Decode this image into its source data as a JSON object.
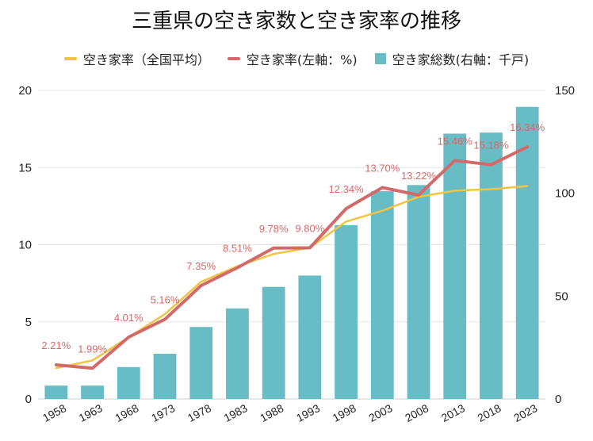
{
  "chart_data": {
    "type": "bar",
    "title": "三重県の空き家数と空き家率の推移",
    "categories": [
      "1958",
      "1963",
      "1968",
      "1973",
      "1978",
      "1983",
      "1988",
      "1993",
      "1998",
      "2003",
      "2008",
      "2013",
      "2018",
      "2023"
    ],
    "series": [
      {
        "name": "空き家率（全国平均）",
        "kind": "line",
        "axis": "left",
        "color": "#f2c440",
        "values": [
          2.0,
          2.5,
          4.0,
          5.5,
          7.6,
          8.6,
          9.4,
          9.8,
          11.5,
          12.2,
          13.1,
          13.5,
          13.6,
          13.8
        ]
      },
      {
        "name": "空き家率(左軸：%)",
        "kind": "line",
        "axis": "left",
        "color": "#d36a6a",
        "values": [
          2.21,
          1.99,
          4.01,
          5.16,
          7.35,
          8.51,
          9.78,
          9.8,
          12.34,
          13.7,
          13.22,
          15.46,
          15.18,
          16.34
        ],
        "data_labels": [
          "2.21%",
          "1.99%",
          "4.01%",
          "5.16%",
          "7.35%",
          "8.51%",
          "9.78%",
          "9.80%",
          "12.34%",
          "13.70%",
          "13.22%",
          "15.46%",
          "15.18%",
          "16.34%"
        ]
      },
      {
        "name": "空き家総数(右軸：千戸)",
        "kind": "bar",
        "axis": "right",
        "color": "#68bcc6",
        "values": [
          6.5,
          6.5,
          15.5,
          22,
          35,
          44,
          54.5,
          60,
          84.5,
          101,
          104,
          129,
          129.5,
          142
        ]
      }
    ],
    "y_left": {
      "ylim": [
        0,
        20
      ],
      "ticks": [
        "0",
        "5",
        "10",
        "15",
        "20"
      ]
    },
    "y_right": {
      "ylim": [
        0,
        150
      ],
      "ticks": [
        "0",
        "50",
        "100",
        "150"
      ]
    },
    "legend_position": "top-center",
    "grid": true
  }
}
